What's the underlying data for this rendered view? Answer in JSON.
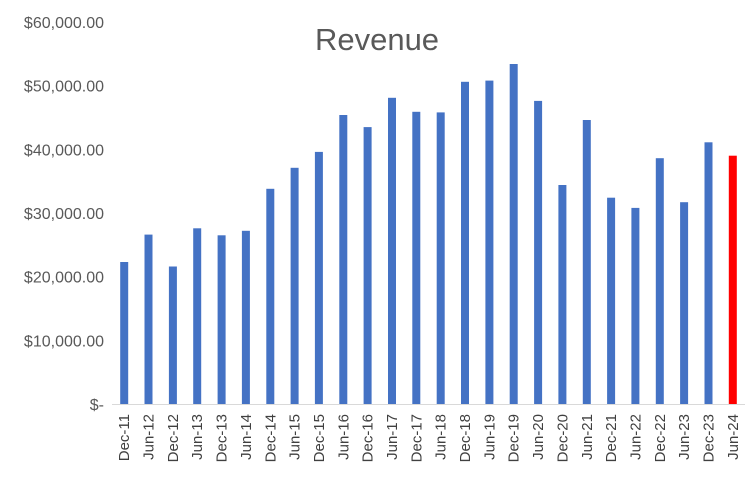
{
  "chart_data": {
    "type": "bar",
    "title": "Revenue",
    "xlabel": "",
    "ylabel": "",
    "ylim": [
      0,
      60000
    ],
    "yticks": [
      "$-",
      "$10,000.00",
      "$20,000.00",
      "$30,000.00",
      "$40,000.00",
      "$50,000.00",
      "$60,000.00"
    ],
    "grid": false,
    "legend": "none",
    "categories": [
      "Dec-11",
      "Jun-12",
      "Dec-12",
      "Jun-13",
      "Dec-13",
      "Jun-14",
      "Dec-14",
      "Jun-15",
      "Dec-15",
      "Jun-16",
      "Dec-16",
      "Jun-17",
      "Dec-17",
      "Jun-18",
      "Dec-18",
      "Jun-19",
      "Dec-19",
      "Jun-20",
      "Dec-20",
      "Jun-21",
      "Dec-21",
      "Jun-22",
      "Dec-22",
      "Jun-23",
      "Dec-23",
      "Jun-24"
    ],
    "values": [
      22300,
      26600,
      21600,
      27600,
      26500,
      27200,
      33800,
      37100,
      39600,
      45400,
      43500,
      48100,
      45900,
      45800,
      50600,
      50800,
      53400,
      47600,
      34400,
      44600,
      32400,
      30800,
      38600,
      31700,
      41100,
      39000
    ],
    "colors": {
      "bar": "#4472C4",
      "highlight": "#FF0000",
      "axis": "#D9D9D9"
    },
    "highlight_index": 25
  }
}
